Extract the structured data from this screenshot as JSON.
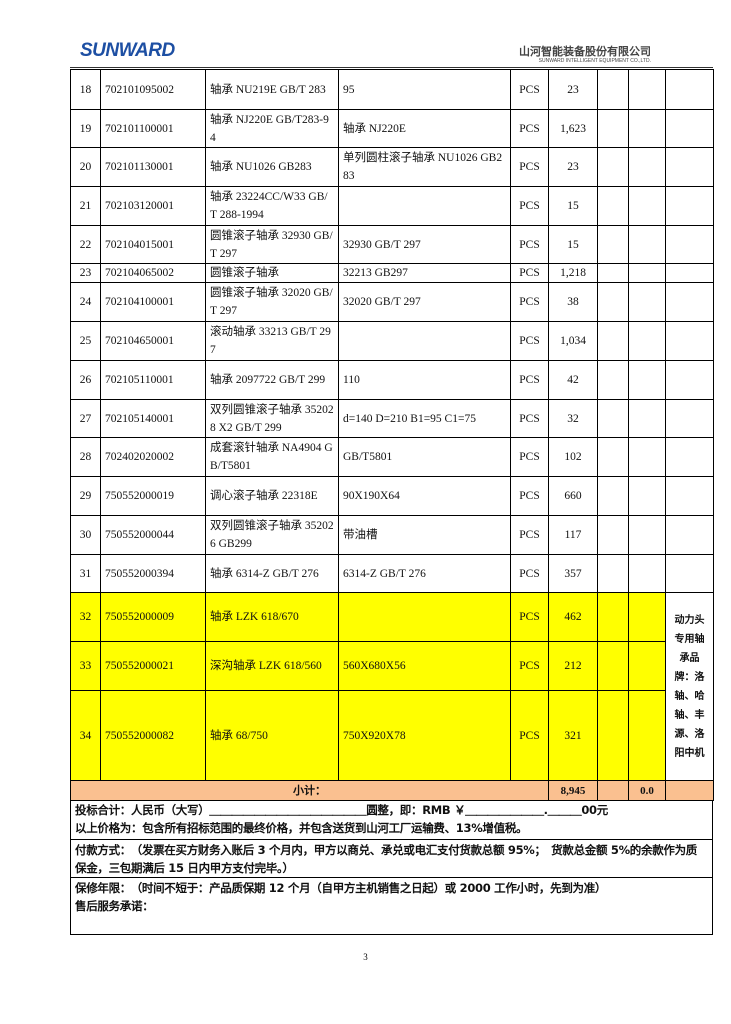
{
  "header": {
    "logo": "SUNWARD",
    "company_cn": "山河智能装备股份有限公司",
    "company_en": "SUNWARD INTELLIGENT EQUIPMENT CO.,LTD."
  },
  "table": {
    "rows": [
      {
        "no": "18",
        "code": "702101095002",
        "name": "轴承 NU219E GB/T 283",
        "spec": "95",
        "unit": "PCS",
        "qty": "23"
      },
      {
        "no": "19",
        "code": "702101100001",
        "name": "轴承 NJ220E GB/T283-94",
        "spec": "轴承 NJ220E",
        "unit": "PCS",
        "qty": "1,623"
      },
      {
        "no": "20",
        "code": "702101130001",
        "name": "轴承 NU1026 GB283",
        "spec": "单列圆柱滚子轴承 NU1026 GB283",
        "unit": "PCS",
        "qty": "23"
      },
      {
        "no": "21",
        "code": "702103120001",
        "name": "轴承 23224CC/W33 GB/T 288-1994",
        "unit": "PCS",
        "qty": "15"
      },
      {
        "no": "22",
        "code": "702104015001",
        "name": "圆锥滚子轴承 32930 GB/T 297",
        "spec": "32930 GB/T 297",
        "unit": "PCS",
        "qty": "15"
      },
      {
        "no": "23",
        "code": "702104065002",
        "name": "圆锥滚子轴承",
        "spec": "32213 GB297",
        "unit": "PCS",
        "qty": "1,218"
      },
      {
        "no": "24",
        "code": "702104100001",
        "name": "圆锥滚子轴承 32020 GB/T 297",
        "spec": "32020 GB/T 297",
        "unit": "PCS",
        "qty": "38"
      },
      {
        "no": "25",
        "code": "702104650001",
        "name": "滚动轴承 33213 GB/T 297",
        "unit": "PCS",
        "qty": "1,034"
      },
      {
        "no": "26",
        "code": "702105110001",
        "name": "轴承 2097722 GB/T 299",
        "spec": "110",
        "unit": "PCS",
        "qty": "42"
      },
      {
        "no": "27",
        "code": "702105140001",
        "name": "双列圆锥滚子轴承 352028 X2 GB/T 299",
        "spec": "d=140 D=210 B1=95 C1=75",
        "unit": "PCS",
        "qty": "32"
      },
      {
        "no": "28",
        "code": "702402020002",
        "name": "成套滚针轴承 NA4904 GB/T5801",
        "spec": "GB/T5801",
        "unit": "PCS",
        "qty": "102"
      },
      {
        "no": "29",
        "code": "750552000019",
        "name": "调心滚子轴承 22318E",
        "spec": "90X190X64",
        "unit": "PCS",
        "qty": "660"
      },
      {
        "no": "30",
        "code": "750552000044",
        "name": "双列圆锥滚子轴承 352026 GB299",
        "spec": "带油槽",
        "unit": "PCS",
        "qty": "117"
      },
      {
        "no": "31",
        "code": "750552000394",
        "name": "轴承 6314-Z GB/T 276",
        "spec": "6314-Z GB/T 276",
        "unit": "PCS",
        "qty": "357"
      },
      {
        "no": "32",
        "code": "750552000009",
        "name": "轴承 LZK 618/670",
        "unit": "PCS",
        "qty": "462",
        "highlight": true
      },
      {
        "no": "33",
        "code": "750552000021",
        "name": "深沟轴承 LZK 618/560",
        "spec": "560X680X56",
        "unit": "PCS",
        "qty": "212",
        "highlight": true
      },
      {
        "no": "34",
        "code": "750552000082",
        "name": "轴承 68/750",
        "spec": "750X920X78",
        "unit": "PCS",
        "qty": "321",
        "highlight": true
      }
    ],
    "remark": "动力头专用轴承品牌：洛轴、哈轴、丰源、洛阳中机",
    "subtotal": {
      "label": "小计：",
      "qty": "8,945",
      "amount": "0.0"
    }
  },
  "notes": {
    "total": "投标合计：人民币（大写）＿＿＿＿＿＿＿＿＿＿＿＿＿＿圆整，即：RMB ￥＿＿＿＿＿＿＿.＿＿＿00元",
    "price": "以上价格为：包含所有招标范围的最终价格，并包含送货到山河工厂运输费、13%增值税。",
    "payment": "付款方式：　（发票在买方财务入账后 3 个月内，甲方以商兑、承兑或电汇支付货款总额 95%；　货款总金额 5%的余款作为质保金，三包期满后 15 日内甲方支付完毕。）",
    "warranty": "保修年限：　（时间不短于：产品质保期 12 个月（自甲方主机销售之日起）或 2000 工作小时，先到为准）",
    "service": "售后服务承诺："
  },
  "page_number": "3"
}
